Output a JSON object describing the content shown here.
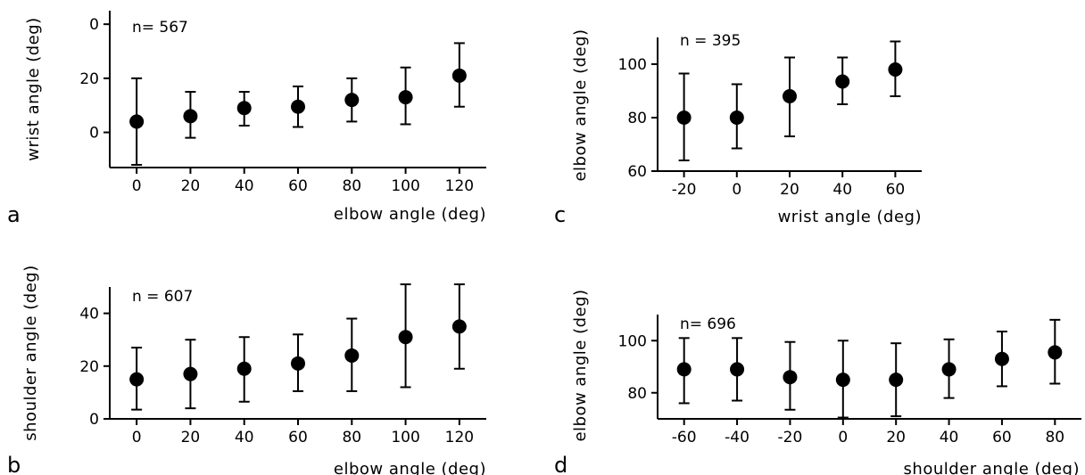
{
  "chart_data": [
    {
      "type": "scatter",
      "panel": "a",
      "annotation": "n= 567",
      "xlabel": "elbow angle (deg)",
      "ylabel": "wrist angle (deg)",
      "xticks": [
        "0",
        "20",
        "40",
        "60",
        "80",
        "100",
        "120"
      ],
      "yticks": [
        "0",
        "20",
        "0"
      ],
      "xlim": [
        -10,
        130
      ],
      "ylim": [
        -13,
        45
      ],
      "series": [
        {
          "x": [
            0,
            20,
            40,
            60,
            80,
            100,
            120
          ],
          "y": [
            4,
            6,
            9,
            9.5,
            12,
            13,
            21
          ],
          "err_low": [
            -12,
            -2,
            2.5,
            2,
            4,
            3,
            9.5
          ],
          "err_high": [
            20,
            15,
            15,
            17,
            20,
            24,
            33
          ]
        }
      ]
    },
    {
      "type": "scatter",
      "panel": "b",
      "annotation": "n = 607",
      "xlabel": "elbow angle (deg)",
      "ylabel": "shoulder angle (deg)",
      "xticks": [
        "0",
        "20",
        "40",
        "60",
        "80",
        "100",
        "120"
      ],
      "yticks": [
        "0",
        "20",
        "40"
      ],
      "xlim": [
        -10,
        130
      ],
      "ylim": [
        0,
        50
      ],
      "series": [
        {
          "x": [
            0,
            20,
            40,
            60,
            80,
            100,
            120
          ],
          "y": [
            15,
            17,
            19,
            21,
            24,
            31,
            35
          ],
          "err_low": [
            3.5,
            4,
            6.5,
            10.5,
            10.5,
            12,
            19
          ],
          "err_high": [
            27,
            30,
            31,
            32,
            38,
            51,
            51
          ]
        }
      ]
    },
    {
      "type": "scatter",
      "panel": "c",
      "annotation": "n = 395",
      "xlabel": "wrist angle (deg)",
      "ylabel": "elbow angle (deg)",
      "xticks": [
        "-20",
        "0",
        "20",
        "40",
        "60"
      ],
      "yticks": [
        "60",
        "80",
        "100"
      ],
      "xlim": [
        -30,
        70
      ],
      "ylim": [
        60,
        110
      ],
      "series": [
        {
          "x": [
            -20,
            0,
            20,
            40,
            60
          ],
          "y": [
            80,
            80,
            88,
            93.5,
            98
          ],
          "err_low": [
            64,
            68.5,
            73,
            85,
            88
          ],
          "err_high": [
            96.5,
            92.5,
            102.5,
            102.5,
            108.5
          ]
        }
      ]
    },
    {
      "type": "scatter",
      "panel": "d",
      "annotation": "n= 696",
      "xlabel": "shoulder angle (deg)",
      "ylabel": "elbow angle (deg)",
      "xticks": [
        "-60",
        "-40",
        "-20",
        "0",
        "20",
        "40",
        "60",
        "80"
      ],
      "yticks": [
        "80",
        "100"
      ],
      "xlim": [
        -70,
        90
      ],
      "ylim": [
        70,
        110
      ],
      "series": [
        {
          "x": [
            -60,
            -40,
            -20,
            0,
            20,
            40,
            60,
            80
          ],
          "y": [
            89,
            89,
            86,
            85,
            85,
            89,
            93,
            95.5
          ],
          "err_low": [
            76,
            77,
            73.5,
            70.5,
            71,
            78,
            82.5,
            83.5
          ],
          "err_high": [
            101,
            101,
            99.5,
            100,
            99,
            100.5,
            103.5,
            108
          ]
        }
      ]
    }
  ]
}
